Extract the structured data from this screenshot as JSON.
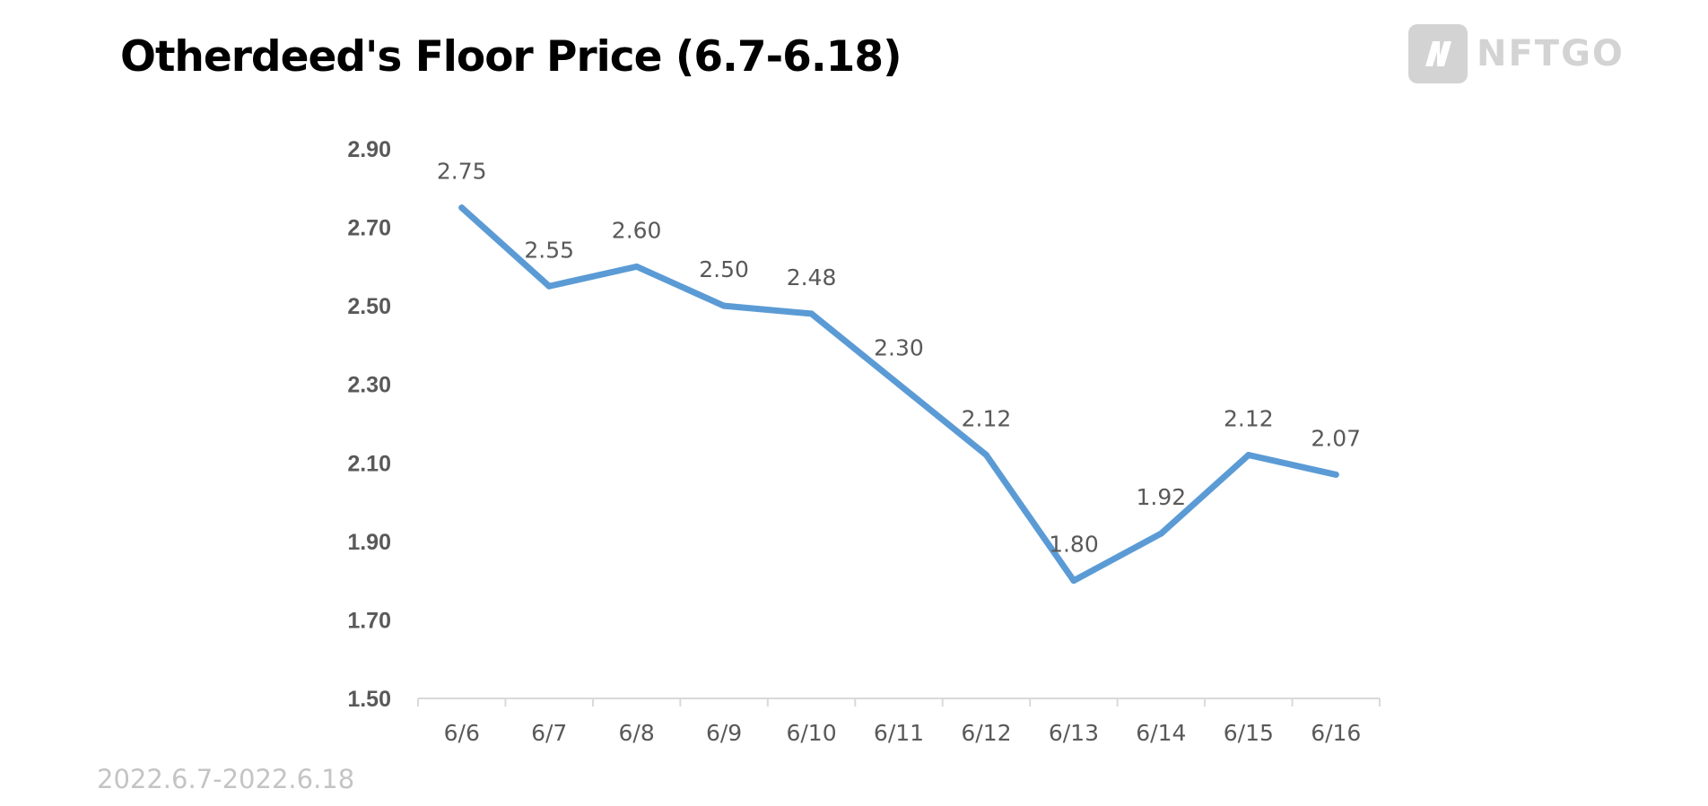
{
  "header": {
    "title": "Otherdeed's Floor Price (6.7-6.18)"
  },
  "logo": {
    "icon": "nftgo-logo-icon",
    "text": "NFTGO",
    "color": "#d3d3d3"
  },
  "footer": {
    "date_range": "2022.6.7-2022.6.18"
  },
  "chart_data": {
    "type": "line",
    "title": "Otherdeed's Floor Price (6.7-6.18)",
    "xlabel": "",
    "ylabel": "",
    "categories": [
      "6/6",
      "6/7",
      "6/8",
      "6/9",
      "6/10",
      "6/11",
      "6/12",
      "6/13",
      "6/14",
      "6/15",
      "6/16"
    ],
    "series": [
      {
        "values": [
          2.75,
          2.55,
          2.6,
          2.5,
          2.48,
          2.3,
          2.12,
          1.8,
          1.92,
          2.12,
          2.07
        ],
        "labels": [
          "2.75",
          "2.55",
          "2.60",
          "2.50",
          "2.48",
          "2.30",
          "2.12",
          "1.80",
          "1.92",
          "2.12",
          "2.07"
        ],
        "color": "#5b9bd5"
      }
    ],
    "yticks": [
      "1.50",
      "1.70",
      "1.90",
      "2.10",
      "2.30",
      "2.50",
      "2.70",
      "2.90"
    ],
    "ylim": [
      1.5,
      2.9
    ],
    "grid": false,
    "legend": "none",
    "data_labels": true
  }
}
